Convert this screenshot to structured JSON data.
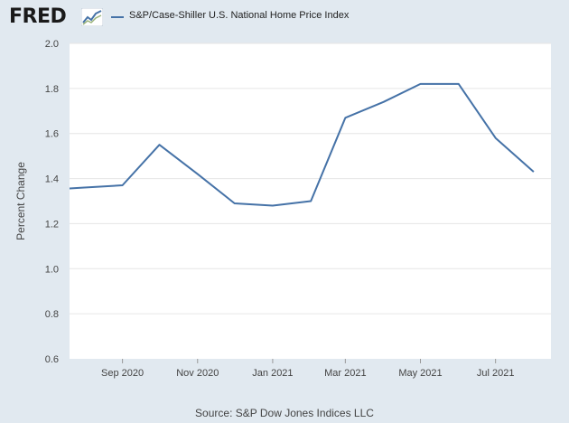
{
  "header": {
    "logo_text": "FRED",
    "logo_icon": "line-chart-icon"
  },
  "colors": {
    "background": "#e1e9f0",
    "plot_background": "#ffffff",
    "series": "#4572a7",
    "grid": "#e6e6e6",
    "text": "#444444"
  },
  "chart_data": {
    "type": "line",
    "title": "",
    "xlabel": "",
    "ylabel": "Percent Change",
    "ylim": [
      0.6,
      2.0
    ],
    "yticks": [
      0.6,
      0.8,
      1.0,
      1.2,
      1.4,
      1.6,
      1.8,
      2.0
    ],
    "xlim": [
      "2020-07-20",
      "2021-08-15"
    ],
    "xticks": [
      {
        "date": "2020-09-01",
        "label": "Sep 2020"
      },
      {
        "date": "2020-11-01",
        "label": "Nov 2020"
      },
      {
        "date": "2021-01-01",
        "label": "Jan 2021"
      },
      {
        "date": "2021-03-01",
        "label": "Mar 2021"
      },
      {
        "date": "2021-05-01",
        "label": "May 2021"
      },
      {
        "date": "2021-07-01",
        "label": "Jul 2021"
      }
    ],
    "grid": true,
    "legend_position": "top",
    "series": [
      {
        "name": "S&P/Case-Shiller U.S. National Home Price Index",
        "x": [
          "2020-07-01",
          "2020-08-01",
          "2020-09-01",
          "2020-10-01",
          "2020-11-01",
          "2020-12-01",
          "2021-01-01",
          "2021-02-01",
          "2021-03-01",
          "2021-04-01",
          "2021-05-01",
          "2021-06-01",
          "2021-07-01",
          "2021-08-01"
        ],
        "values": [
          1.35,
          1.36,
          1.37,
          1.55,
          1.42,
          1.29,
          1.28,
          1.3,
          1.67,
          1.74,
          1.82,
          1.82,
          1.58,
          1.43
        ]
      }
    ]
  },
  "footer": {
    "source": "Source: S&P Dow Jones Indices LLC"
  }
}
